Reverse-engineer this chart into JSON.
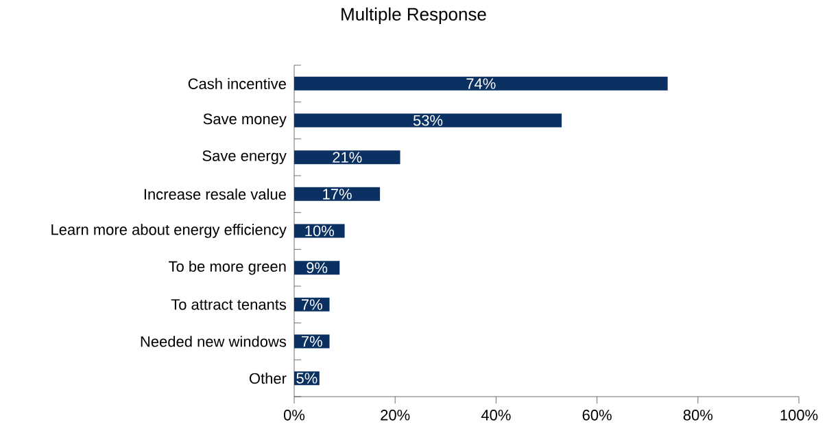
{
  "chart_data": {
    "type": "bar",
    "orientation": "horizontal",
    "title": "Multiple Response",
    "categories": [
      "Cash incentive",
      "Save money",
      "Save energy",
      "Increase resale value",
      "Learn more about energy efficiency",
      "To be more green",
      "To attract tenants",
      "Needed new windows",
      "Other"
    ],
    "values": [
      74,
      53,
      21,
      17,
      10,
      9,
      7,
      7,
      5
    ],
    "value_labels": [
      "74%",
      "53%",
      "21%",
      "17%",
      "10%",
      "9%",
      "7%",
      "7%",
      "5%"
    ],
    "color": "#0a3161",
    "xlim": [
      0,
      100
    ],
    "xticks": [
      {
        "value": 0,
        "label": "0%"
      },
      {
        "value": 20,
        "label": "20%"
      },
      {
        "value": 40,
        "label": "40%"
      },
      {
        "value": 60,
        "label": "60%"
      },
      {
        "value": 80,
        "label": "80%"
      },
      {
        "value": 100,
        "label": "100%"
      }
    ]
  }
}
